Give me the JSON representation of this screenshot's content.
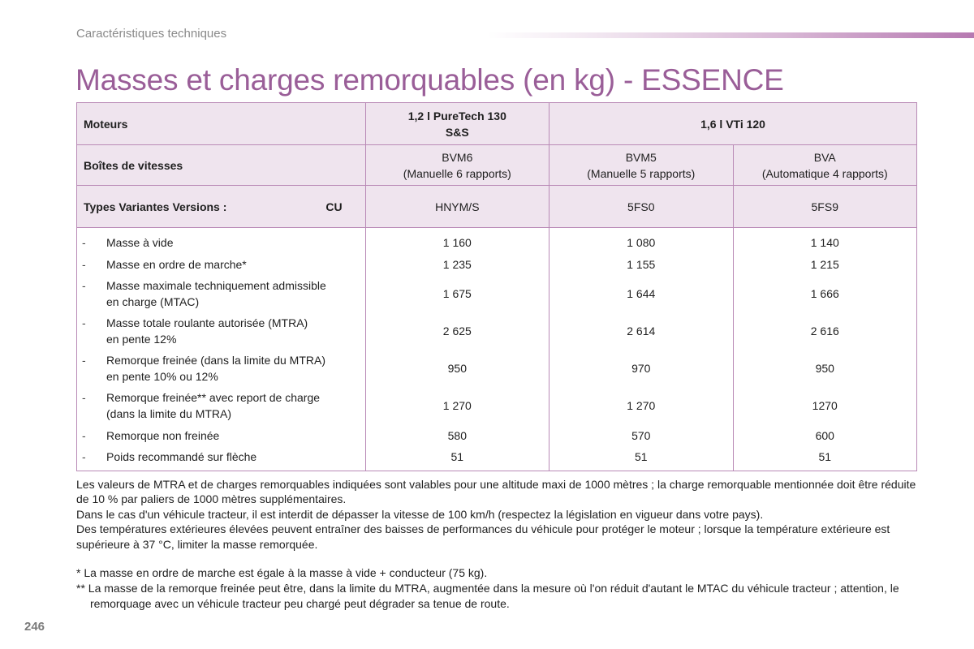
{
  "header": {
    "section": "Caractéristiques techniques",
    "title": "Masses et charges remorquables (en kg) - ESSENCE"
  },
  "table": {
    "engines_label": "Moteurs",
    "engine_1": "1,2 l PureTech 130\nS&S",
    "engine_2": "1,6 l VTi 120",
    "gearbox_label": "Boîtes de vitesses",
    "gearboxes": [
      {
        "name": "BVM6",
        "detail": "(Manuelle 6 rapports)"
      },
      {
        "name": "BVM5",
        "detail": "(Manuelle 5 rapports)"
      },
      {
        "name": "BVA",
        "detail": "(Automatique 4 rapports)"
      }
    ],
    "types_label": "Types Variantes Versions :",
    "cu_label": "CU",
    "types": [
      "HNYM/S",
      "5FS0",
      "5FS9"
    ],
    "rows": [
      {
        "dash": "-",
        "label": "Masse à vide",
        "values": [
          "1 160",
          "1 080",
          "1 140"
        ]
      },
      {
        "dash": "-",
        "label": "Masse en ordre de marche*",
        "values": [
          "1 235",
          "1 155",
          "1 215"
        ]
      },
      {
        "dash": "-",
        "label": "Masse maximale techniquement admissible\nen charge (MTAC)",
        "values": [
          "1 675",
          "1 644",
          "1 666"
        ]
      },
      {
        "dash": "-",
        "label": "Masse totale roulante autorisée (MTRA)\nen pente 12%",
        "values": [
          "2 625",
          "2 614",
          "2 616"
        ]
      },
      {
        "dash": "-",
        "label": "Remorque freinée (dans la limite du MTRA)\nen pente 10% ou 12%",
        "values": [
          "950",
          "970",
          "950"
        ]
      },
      {
        "dash": "-",
        "label": "Remorque freinée** avec report de charge\n(dans la limite du MTRA)",
        "values": [
          "1 270",
          "1 270",
          "1270"
        ]
      },
      {
        "dash": "-",
        "label": "Remorque non freinée",
        "values": [
          "580",
          "570",
          "600"
        ]
      },
      {
        "dash": "-",
        "label": "Poids recommandé sur flèche",
        "values": [
          "51",
          "51",
          "51"
        ]
      }
    ]
  },
  "notes": [
    "Les valeurs de MTRA et de charges remorquables indiquées sont valables pour une altitude maxi de 1000 mètres ; la charge remorquable mentionnée doit être réduite de 10 % par paliers de 1000 mètres supplémentaires.",
    "Dans le cas d'un véhicule tracteur, il est interdit de dépasser la vitesse de 100 km/h (respectez la législation en vigueur dans votre pays).",
    "Des températures extérieures élevées peuvent entraîner des baisses de performances du véhicule pour protéger le moteur ; lorsque la température extérieure est supérieure à 37 °C, limiter la masse remorquée."
  ],
  "footnotes": [
    "* La masse en ordre de marche est égale à la masse à vide + conducteur (75 kg).",
    "** La masse de la remorque freinée peut être, dans la limite du MTRA, augmentée dans la mesure où l'on réduit d'autant le MTAC du véhicule tracteur ; attention, le remorquage avec un véhicule tracteur peu chargé peut dégrader sa tenue de route."
  ],
  "page_number": "246",
  "colors": {
    "accent": "#9a5e98",
    "header_fill": "#efe4ee",
    "border": "#b98ab6"
  }
}
